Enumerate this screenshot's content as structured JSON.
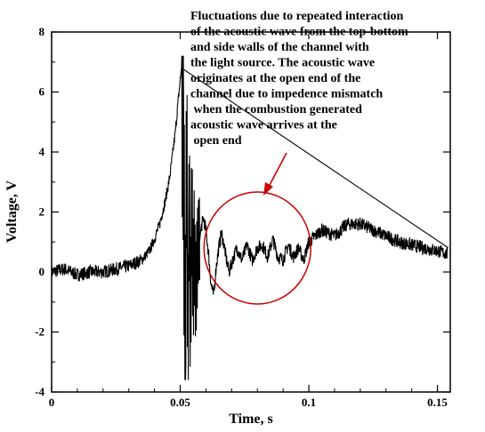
{
  "chart_data": {
    "type": "line",
    "xlabel": "Time, s",
    "ylabel": "Voltage, V",
    "xlim": [
      0,
      0.155
    ],
    "ylim": [
      -4,
      8
    ],
    "xticks": [
      0,
      0.05,
      0.1,
      0.15
    ],
    "xtick_labels": [
      "0",
      "0.05",
      "0.1",
      "0.15"
    ],
    "yticks": [
      -4,
      -2,
      0,
      2,
      4,
      6,
      8
    ],
    "ytick_labels": [
      "-4",
      "-2",
      "0",
      "2",
      "4",
      "6",
      "8"
    ],
    "grid": false,
    "series": [
      {
        "color": "#000000",
        "x": [
          0,
          0.005,
          0.01,
          0.015,
          0.02,
          0.025,
          0.03,
          0.035,
          0.038,
          0.04,
          0.042,
          0.044,
          0.046,
          0.048,
          0.05,
          0.051,
          0.0515,
          0.052,
          0.0525,
          0.053,
          0.0535,
          0.054,
          0.0545,
          0.055,
          0.0555,
          0.056,
          0.057,
          0.058,
          0.059,
          0.06,
          0.061,
          0.062,
          0.063,
          0.064,
          0.065,
          0.066,
          0.067,
          0.068,
          0.069,
          0.07,
          0.072,
          0.074,
          0.076,
          0.078,
          0.08,
          0.082,
          0.084,
          0.086,
          0.088,
          0.09,
          0.092,
          0.094,
          0.096,
          0.098,
          0.1,
          0.105,
          0.11,
          0.115,
          0.12,
          0.125,
          0.13,
          0.135,
          0.14,
          0.145,
          0.15,
          0.154
        ],
        "y": [
          0.0,
          0.1,
          -0.1,
          0.0,
          0.0,
          0.1,
          0.2,
          0.4,
          0.7,
          1.1,
          1.6,
          2.3,
          3.2,
          4.6,
          6.4,
          7.2,
          2.0,
          -3.6,
          4.5,
          -2.5,
          3.0,
          -1.5,
          1.8,
          -0.8,
          1.2,
          -0.3,
          0.6,
          1.4,
          1.8,
          1.4,
          0.6,
          -0.4,
          -0.8,
          0.2,
          0.8,
          1.3,
          0.9,
          0.4,
          0.0,
          0.3,
          0.8,
          0.4,
          0.9,
          0.4,
          0.8,
          0.9,
          0.5,
          1.1,
          0.5,
          0.4,
          0.9,
          0.5,
          0.8,
          0.4,
          1.0,
          1.4,
          1.2,
          1.6,
          1.6,
          1.4,
          1.2,
          1.0,
          0.9,
          0.8,
          0.7,
          0.6
        ]
      }
    ],
    "annotation": {
      "lines": [
        "Fluctuations due to repeated interaction",
        "of the acoustic wave from the top-bottom",
        "and side walls of the channel with",
        "the light source. The acoustic wave",
        "originates  at the open end of the",
        "channel due to  impedence mismatch",
        " when the combustion generated",
        "acoustic wave arrives at the",
        " open end"
      ],
      "highlight_color": "#cc0000",
      "circle_center": [
        0.08,
        0.8
      ]
    }
  }
}
